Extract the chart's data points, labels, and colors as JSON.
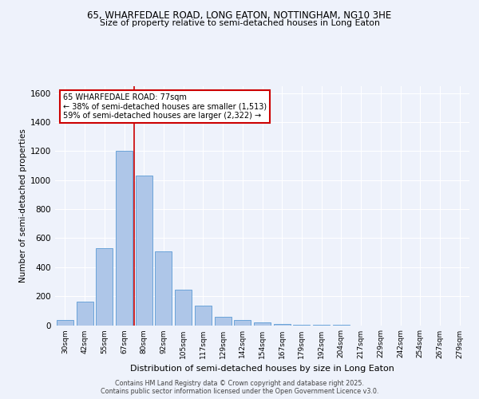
{
  "title": "65, WHARFEDALE ROAD, LONG EATON, NOTTINGHAM, NG10 3HE",
  "subtitle": "Size of property relative to semi-detached houses in Long Eaton",
  "xlabel": "Distribution of semi-detached houses by size in Long Eaton",
  "ylabel": "Number of semi-detached properties",
  "bar_labels": [
    "30sqm",
    "42sqm",
    "55sqm",
    "67sqm",
    "80sqm",
    "92sqm",
    "105sqm",
    "117sqm",
    "129sqm",
    "142sqm",
    "154sqm",
    "167sqm",
    "179sqm",
    "192sqm",
    "204sqm",
    "217sqm",
    "229sqm",
    "242sqm",
    "254sqm",
    "267sqm",
    "279sqm"
  ],
  "bar_values": [
    35,
    165,
    530,
    1200,
    1030,
    510,
    245,
    135,
    60,
    35,
    20,
    10,
    5,
    2,
    1,
    0,
    0,
    0,
    0,
    0,
    0
  ],
  "annotation_title": "65 WHARFEDALE ROAD: 77sqm",
  "annotation_line1": "← 38% of semi-detached houses are smaller (1,513)",
  "annotation_line2": "59% of semi-detached houses are larger (2,322) →",
  "bar_color": "#aec6e8",
  "bar_edge_color": "#5b9bd5",
  "vline_color": "#cc0000",
  "annotation_box_edge": "#cc0000",
  "background_color": "#eef2fb",
  "plot_bg_color": "#eef2fb",
  "ylim": [
    0,
    1650
  ],
  "yticks": [
    0,
    200,
    400,
    600,
    800,
    1000,
    1200,
    1400,
    1600
  ],
  "vline_x": 3.5,
  "footer_line1": "Contains HM Land Registry data © Crown copyright and database right 2025.",
  "footer_line2": "Contains public sector information licensed under the Open Government Licence v3.0."
}
